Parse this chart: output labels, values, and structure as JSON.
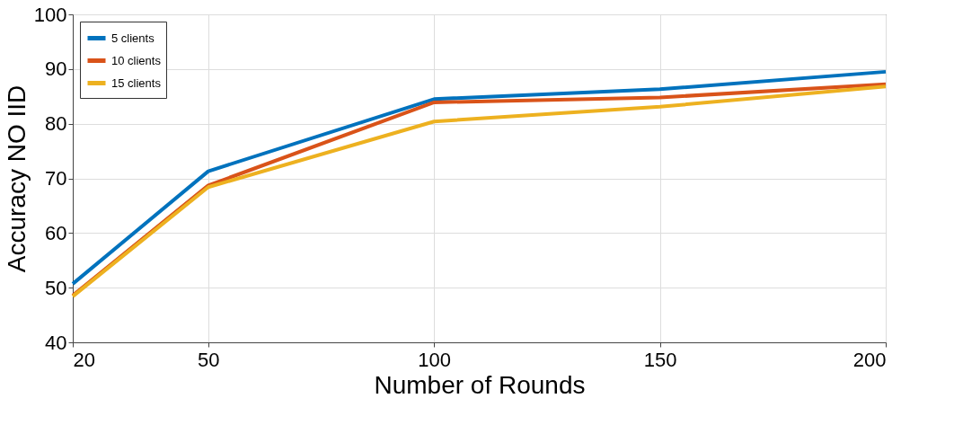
{
  "chart_data": {
    "type": "line",
    "xlabel": "Number of Rounds",
    "ylabel": "Accuracy NO IID",
    "x": [
      20,
      50,
      100,
      150,
      200
    ],
    "series": [
      {
        "name": "5 clients",
        "color": "#0072bd",
        "values": [
          50.7,
          71.3,
          84.5,
          86.3,
          89.5
        ]
      },
      {
        "name": "10 clients",
        "color": "#d95319",
        "values": [
          48.6,
          68.7,
          83.9,
          84.8,
          87.2
        ]
      },
      {
        "name": "15 clients",
        "color": "#edb120",
        "values": [
          48.4,
          68.4,
          80.4,
          83.1,
          86.8
        ]
      }
    ],
    "xlim": [
      20,
      200
    ],
    "xticks": [
      20,
      50,
      100,
      150,
      200
    ],
    "ylim": [
      40,
      100
    ],
    "yticks": [
      40,
      50,
      60,
      70,
      80,
      90,
      100
    ],
    "grid": true,
    "legend": "top left",
    "marker": "none",
    "line_style": "solid"
  }
}
